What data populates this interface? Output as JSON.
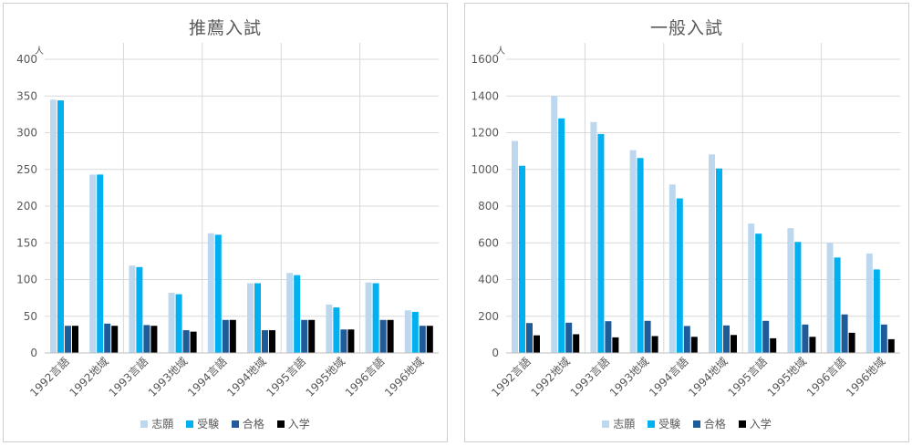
{
  "colors": {
    "series": [
      "#BDD7EE",
      "#00B0F0",
      "#1F5B99",
      "#000000"
    ],
    "grid": "#D9D9D9",
    "text": "#595959"
  },
  "legend": {
    "items": [
      {
        "label": "志願",
        "color": "#BDD7EE"
      },
      {
        "label": "受験",
        "color": "#00B0F0"
      },
      {
        "label": "合格",
        "color": "#1F5B99"
      },
      {
        "label": "入学",
        "color": "#000000"
      }
    ]
  },
  "chart_data": [
    {
      "type": "bar",
      "title": "推薦入試",
      "unit_label": "人",
      "ylim": [
        0,
        400
      ],
      "ytick_step": 50,
      "grid": true,
      "legend_position": "bottom",
      "categories": [
        "1992言語",
        "1992地域",
        "1993言語",
        "1993地域",
        "1994言語",
        "1994地域",
        "1995言語",
        "1995地域",
        "1996言語",
        "1996地域"
      ],
      "series": [
        {
          "name": "志願",
          "values": [
            345,
            243,
            119,
            82,
            163,
            95,
            109,
            66,
            96,
            58
          ]
        },
        {
          "name": "受験",
          "values": [
            344,
            243,
            117,
            80,
            161,
            95,
            106,
            62,
            95,
            56
          ]
        },
        {
          "name": "合格",
          "values": [
            37,
            40,
            38,
            31,
            45,
            31,
            45,
            32,
            45,
            37
          ]
        },
        {
          "name": "入学",
          "values": [
            37,
            37,
            37,
            29,
            45,
            31,
            45,
            32,
            45,
            37
          ]
        }
      ]
    },
    {
      "type": "bar",
      "title": "一般入試",
      "unit_label": "人",
      "ylim": [
        0,
        1600
      ],
      "ytick_step": 200,
      "grid": true,
      "legend_position": "bottom",
      "categories": [
        "1992言語",
        "1992地域",
        "1993言語",
        "1993地域",
        "1994言語",
        "1994地域",
        "1995言語",
        "1995地域",
        "1996言語",
        "1996地域"
      ],
      "series": [
        {
          "name": "志願",
          "values": [
            1155,
            1400,
            1258,
            1105,
            918,
            1082,
            705,
            680,
            600,
            542
          ]
        },
        {
          "name": "受験",
          "values": [
            1020,
            1278,
            1193,
            1062,
            842,
            1005,
            650,
            605,
            520,
            455
          ]
        },
        {
          "name": "合格",
          "values": [
            163,
            165,
            173,
            175,
            147,
            150,
            175,
            155,
            210,
            155
          ]
        },
        {
          "name": "入学",
          "values": [
            96,
            102,
            85,
            92,
            88,
            98,
            80,
            88,
            110,
            75
          ]
        }
      ]
    }
  ]
}
